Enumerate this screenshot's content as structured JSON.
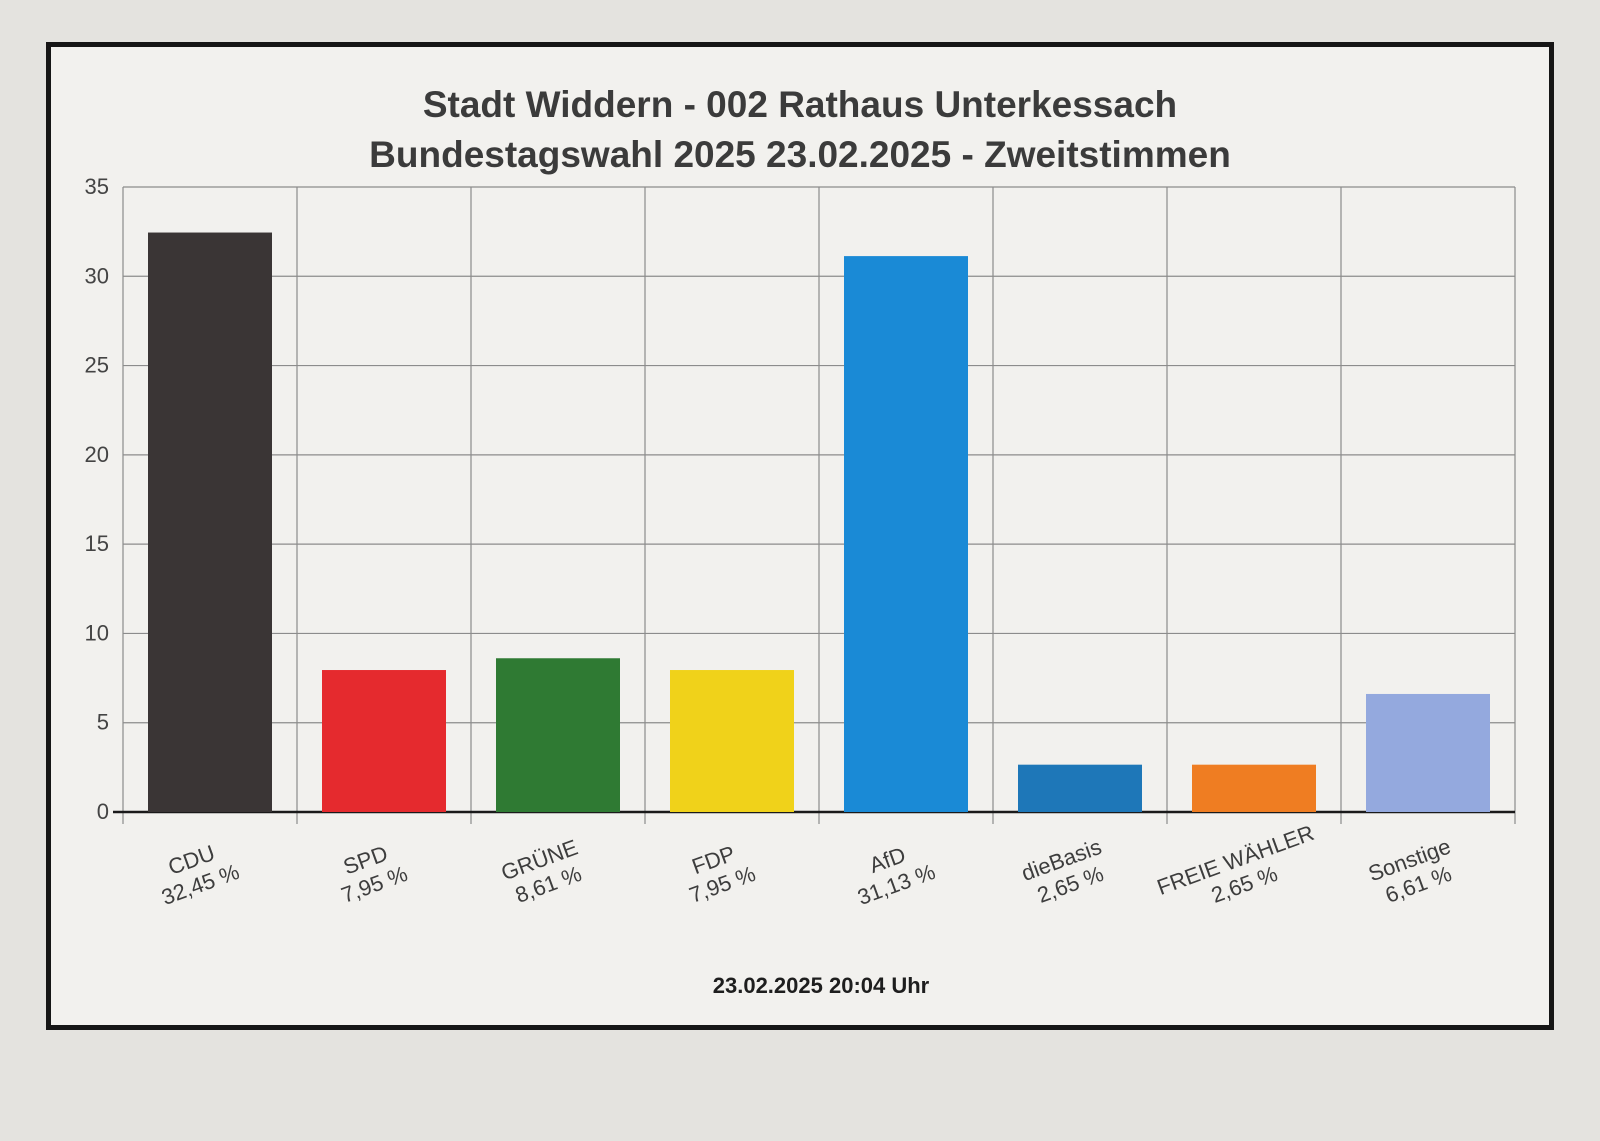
{
  "chart_data": {
    "type": "bar",
    "title": "Stadt Widdern - 002 Rathaus Unterkessach",
    "subtitle": "Bundestagswahl 2025 23.02.2025  - Zweitstimmen",
    "categories": [
      "CDU",
      "SPD",
      "GRÜNE",
      "FDP",
      "AfD",
      "dieBasis",
      "FREIE WÄHLER",
      "Sonstige"
    ],
    "values": [
      32.45,
      7.95,
      8.61,
      7.95,
      31.13,
      2.65,
      2.65,
      6.61
    ],
    "value_labels": [
      "32,45 %",
      "7,95 %",
      "8,61 %",
      "7,95 %",
      "31,13 %",
      "2,65 %",
      "2,65 %",
      "6,61 %"
    ],
    "colors": [
      "#3a3535",
      "#e52a2e",
      "#2f7a33",
      "#f0d21a",
      "#1a8ad6",
      "#1e77b8",
      "#ef7d22",
      "#94a9de"
    ],
    "ylim": [
      0,
      35
    ],
    "yticks": [
      0,
      5,
      10,
      15,
      20,
      25,
      30,
      35
    ],
    "xlabel": "",
    "ylabel": "",
    "grid": true,
    "legend": "none"
  },
  "footer": {
    "timestamp": "23.02.2025 20:04 Uhr"
  }
}
